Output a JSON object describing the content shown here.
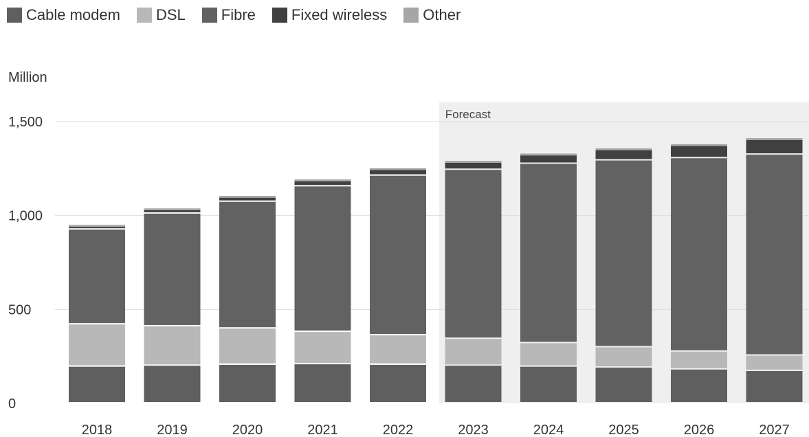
{
  "legend": {
    "items": [
      {
        "label": "Cable modem",
        "color": "#5f5f5f"
      },
      {
        "label": "DSL",
        "color": "#b8b8b8"
      },
      {
        "label": "Fibre",
        "color": "#626262"
      },
      {
        "label": "Fixed wireless",
        "color": "#404040"
      },
      {
        "label": "Other",
        "color": "#a6a6a6"
      }
    ]
  },
  "y_unit": "Million",
  "forecast_label": "Forecast",
  "chart_data": {
    "type": "bar",
    "stacked": true,
    "categories": [
      "2018",
      "2019",
      "2020",
      "2021",
      "2022",
      "2023",
      "2024",
      "2025",
      "2026",
      "2027"
    ],
    "series": [
      {
        "name": "Cable modem",
        "values": [
          195,
          200,
          205,
          208,
          205,
          200,
          195,
          190,
          180,
          172
        ]
      },
      {
        "name": "DSL",
        "values": [
          225,
          210,
          193,
          172,
          157,
          143,
          125,
          108,
          95,
          82
        ]
      },
      {
        "name": "Fibre",
        "values": [
          505,
          600,
          675,
          775,
          850,
          900,
          955,
          995,
          1030,
          1070
        ]
      },
      {
        "name": "Fixed wireless",
        "values": [
          15,
          18,
          22,
          27,
          30,
          38,
          45,
          55,
          65,
          78
        ]
      },
      {
        "name": "Other",
        "values": [
          10,
          10,
          10,
          10,
          10,
          10,
          10,
          10,
          10,
          10
        ]
      }
    ],
    "ylim": [
      0,
      1500
    ],
    "yticks": [
      0,
      500,
      1000,
      1500
    ],
    "ytick_labels": [
      "0",
      "500",
      "1,000",
      "1,500"
    ],
    "forecast_start": "2023",
    "grid": true,
    "legend_position": "top-left"
  }
}
